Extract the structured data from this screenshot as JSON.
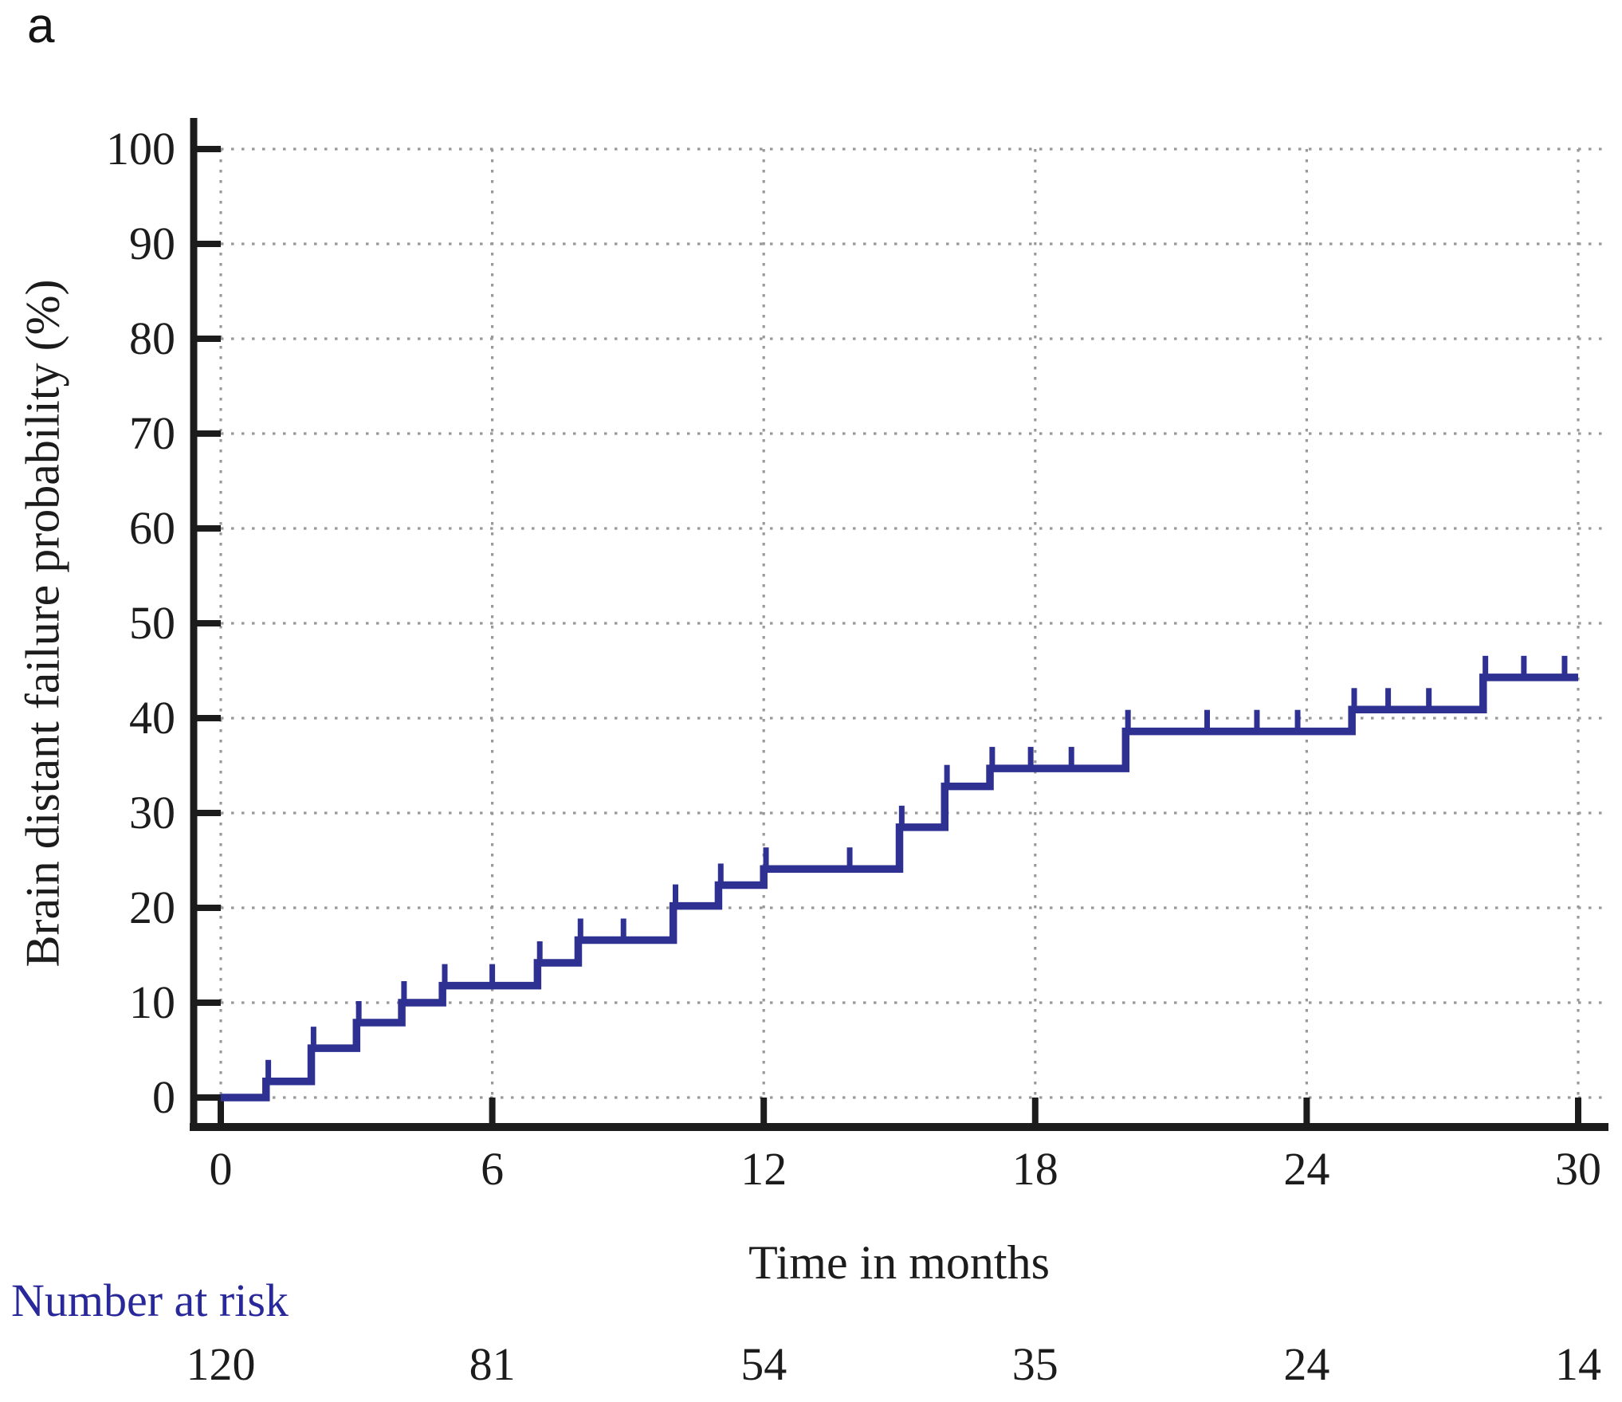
{
  "panel_label": "a",
  "colors": {
    "curve": "#2e3192",
    "grid": "#999999",
    "axis": "#1c1c1c",
    "risk_label": "#28289a",
    "text": "#1c1c1c"
  },
  "chart_data": {
    "type": "line",
    "subtype": "kaplan-meier-step-curve",
    "title": "",
    "xlabel": "Time in months",
    "ylabel": "Brain distant failure probability (%)",
    "xlim": [
      0,
      30
    ],
    "ylim": [
      0,
      100
    ],
    "x_ticks": [
      0,
      6,
      12,
      18,
      24,
      30
    ],
    "y_ticks": [
      0,
      10,
      20,
      30,
      40,
      50,
      60,
      70,
      80,
      90,
      100
    ],
    "grid": "dotted",
    "legend": "none",
    "series": [
      {
        "name": "Brain distant failure probability",
        "color": "#2e3192",
        "steps": [
          [
            0,
            0
          ],
          [
            1,
            1.7
          ],
          [
            2,
            5.2
          ],
          [
            3,
            7.9
          ],
          [
            4,
            10.0
          ],
          [
            4.9,
            11.8
          ],
          [
            7,
            14.2
          ],
          [
            7.9,
            16.6
          ],
          [
            10,
            20.2
          ],
          [
            11,
            22.4
          ],
          [
            12,
            24.1
          ],
          [
            15,
            28.5
          ],
          [
            16,
            32.8
          ],
          [
            17,
            34.7
          ],
          [
            20,
            38.6
          ],
          [
            25,
            40.9
          ],
          [
            27.9,
            44.3
          ]
        ],
        "end_time": 30,
        "censor_marks": [
          [
            1.05,
            1.7
          ],
          [
            2.05,
            5.2
          ],
          [
            3.05,
            7.9
          ],
          [
            4.05,
            10.0
          ],
          [
            4.95,
            11.8
          ],
          [
            6,
            11.8
          ],
          [
            7.05,
            14.2
          ],
          [
            7.95,
            16.6
          ],
          [
            8.9,
            16.6
          ],
          [
            10.05,
            20.2
          ],
          [
            11.05,
            22.4
          ],
          [
            12.05,
            24.1
          ],
          [
            13.9,
            24.1
          ],
          [
            15.05,
            28.5
          ],
          [
            16.05,
            32.8
          ],
          [
            17.05,
            34.7
          ],
          [
            17.9,
            34.7
          ],
          [
            18.8,
            34.7
          ],
          [
            20.05,
            38.6
          ],
          [
            21.8,
            38.6
          ],
          [
            22.9,
            38.6
          ],
          [
            23.8,
            38.6
          ],
          [
            25.05,
            40.9
          ],
          [
            25.8,
            40.9
          ],
          [
            26.7,
            40.9
          ],
          [
            27.95,
            44.3
          ],
          [
            28.8,
            44.3
          ],
          [
            29.7,
            44.3
          ]
        ]
      }
    ],
    "number_at_risk": {
      "label": "Number at risk",
      "times": [
        0,
        6,
        12,
        18,
        24,
        30
      ],
      "counts": [
        120,
        81,
        54,
        35,
        24,
        14
      ]
    }
  }
}
